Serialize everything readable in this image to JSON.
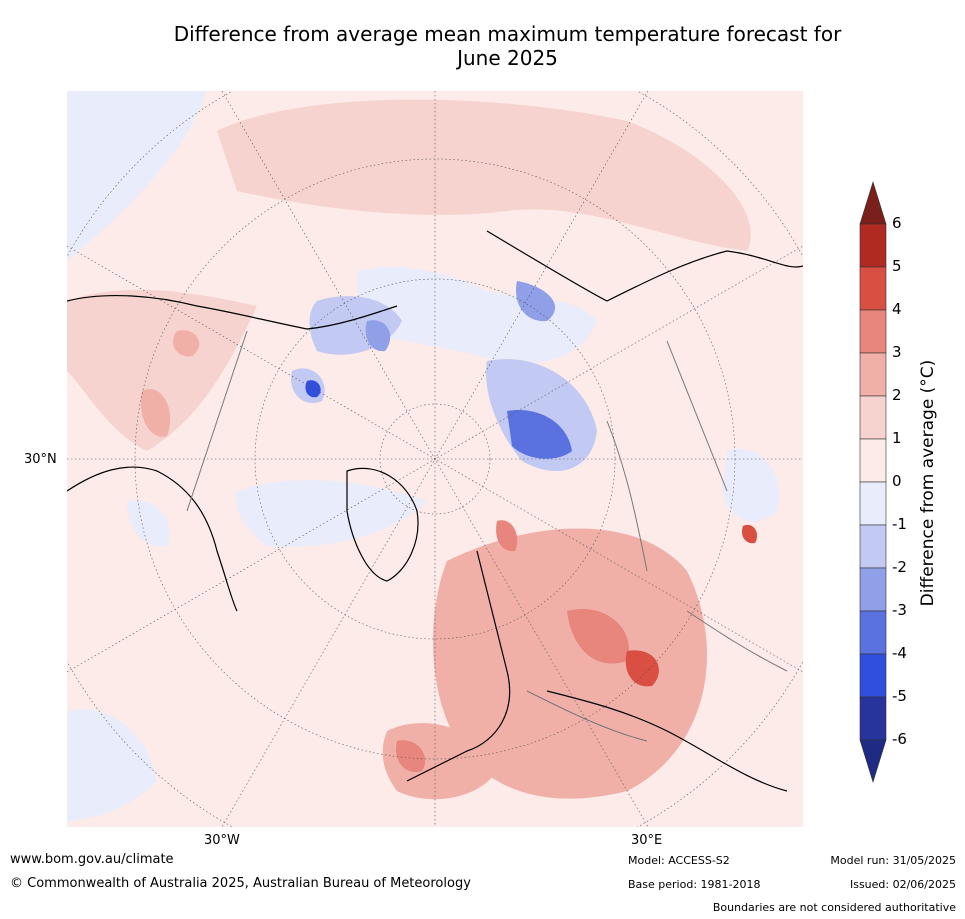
{
  "title_line1": "Difference from average mean maximum temperature forecast for",
  "title_line2": "June 2025",
  "axis_labels": {
    "lat": "30°N",
    "lon_w": "30°W",
    "lon_e": "30°E"
  },
  "colorbar": {
    "title": "Difference from average (°C)",
    "ticks": [
      "6",
      "5",
      "4",
      "3",
      "2",
      "1",
      "0",
      "-1",
      "-2",
      "-3",
      "-4",
      "-5",
      "-6"
    ],
    "colors": [
      "#7a1f1a",
      "#b02a22",
      "#d94f42",
      "#e8857c",
      "#f0b0a8",
      "#f6d3cf",
      "#fcebe8",
      "#e8ecfb",
      "#c2c9f2",
      "#8f9fe8",
      "#5a72e0",
      "#2f4fdc",
      "#26349c",
      "#1f2a85"
    ]
  },
  "footer": {
    "url": "www.bom.gov.au/climate",
    "copyright": "© Commonwealth of Australia 2025, Australian Bureau of Meteorology",
    "model": "Model: ACCESS-S2",
    "base_period": "Base period: 1981-2018",
    "model_run": "Model run: 31/05/2025",
    "issued": "Issued: 02/06/2025",
    "disclaimer": "Boundaries are not considered authoritative"
  }
}
